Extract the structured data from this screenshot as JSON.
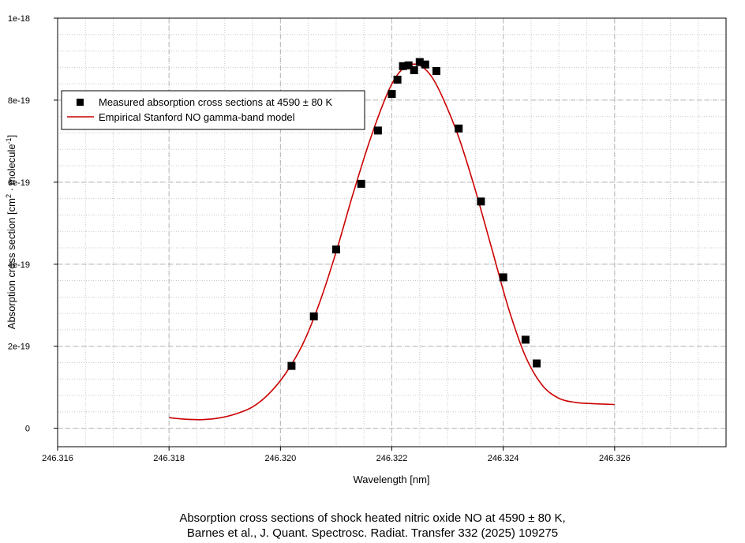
{
  "chart_data": {
    "type": "scatter",
    "xlabel": "Wavelength [nm]",
    "ylabel_main": "Absorption cross section [cm",
    "ylabel_sup1": "2",
    "ylabel_mid": " · molecule",
    "ylabel_sup2": "-1",
    "ylabel_end": "]",
    "xlim": [
      246.316,
      246.328
    ],
    "ylim": [
      -4.5e-20,
      1e-18
    ],
    "xticks": [
      {
        "value": 246.316,
        "label": "246.316"
      },
      {
        "value": 246.318,
        "label": "246.318"
      },
      {
        "value": 246.32,
        "label": "246.320"
      },
      {
        "value": 246.322,
        "label": "246.322"
      },
      {
        "value": 246.324,
        "label": "246.324"
      },
      {
        "value": 246.326,
        "label": "246.326"
      }
    ],
    "yticks": [
      {
        "value": 0,
        "label": "0"
      },
      {
        "value": 2e-19,
        "label": "2e-19"
      },
      {
        "value": 4e-19,
        "label": "4e-19"
      },
      {
        "value": 6e-19,
        "label": "6e-19"
      },
      {
        "value": 8e-19,
        "label": "8e-19"
      },
      {
        "value": 1e-18,
        "label": "1e-18"
      }
    ],
    "grid": true,
    "legend_position": "top-left",
    "series": [
      {
        "name": "Measured absorption cross sections at 4590 ± 80 K",
        "kind": "markers",
        "color": "#000000",
        "x": [
          246.3202,
          246.3206,
          246.321,
          246.32145,
          246.32175,
          246.322,
          246.3221,
          246.3222,
          246.3223,
          246.3224,
          246.3225,
          246.3226,
          246.3228,
          246.3232,
          246.3236,
          246.324,
          246.3244,
          246.3246
        ],
        "y": [
          1.52e-19,
          2.73e-19,
          4.36e-19,
          5.96e-19,
          7.26e-19,
          8.15e-19,
          8.5e-19,
          8.83e-19,
          8.85e-19,
          8.73e-19,
          8.93e-19,
          8.87e-19,
          8.71e-19,
          7.31e-19,
          5.53e-19,
          3.68e-19,
          2.16e-19,
          1.58e-19
        ]
      },
      {
        "name": "Empirical Stanford NO gamma-band model",
        "kind": "line",
        "color": "#cc0000",
        "x": [
          246.318,
          246.3183,
          246.3186,
          246.3189,
          246.3192,
          246.3195,
          246.3198,
          246.3201,
          246.3204,
          246.3207,
          246.321,
          246.3213,
          246.3216,
          246.3219,
          246.3221,
          246.3223,
          246.3225,
          246.3227,
          246.3229,
          246.3232,
          246.3235,
          246.3238,
          246.3241,
          246.3244,
          246.3247,
          246.325,
          246.3253,
          246.3256,
          246.326
        ],
        "y": [
          2.6e-20,
          2.2e-20,
          2.1e-20,
          2.5e-20,
          3.5e-20,
          5.2e-20,
          8.5e-20,
          1.35e-19,
          2.05e-19,
          3.05e-19,
          4.3e-19,
          5.7e-19,
          7e-19,
          8.1e-19,
          8.62e-19,
          8.85e-19,
          8.85e-19,
          8.6e-19,
          8.1e-19,
          7.1e-19,
          5.8e-19,
          4.35e-19,
          2.9e-19,
          1.75e-19,
          1.05e-19,
          7.3e-20,
          6.3e-20,
          6e-20,
          5.8e-20
        ]
      }
    ]
  },
  "caption": {
    "line1": "Absorption cross sections of shock heated nitric oxide NO at 4590 ± 80 K,",
    "line2": "Barnes et al., J. Quant. Spectrosc. Radiat. Transfer 332 (2025) 109275"
  }
}
